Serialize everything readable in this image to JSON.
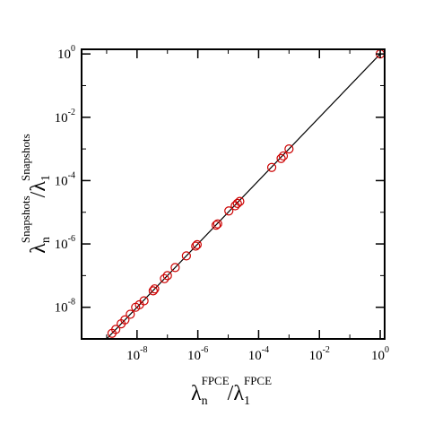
{
  "chart_data": {
    "type": "scatter",
    "title": "",
    "xlabel": {
      "base1": "λ",
      "sub1": "n",
      "sup1": "FPCE",
      "slash": "/",
      "base2": "λ",
      "sub2": "1",
      "sup2": "FPCE"
    },
    "ylabel": {
      "base1": "λ",
      "sub1": "n",
      "sup1": "Snapshots",
      "slash": "/",
      "base2": "λ",
      "sub2": "1",
      "sup2": "Snapshots"
    },
    "x_scale": "log",
    "y_scale": "log",
    "xlim": [
      1.5e-10,
      1.4
    ],
    "ylim": [
      1e-09,
      1.4
    ],
    "x_ticks": [
      {
        "base": "10",
        "exp": "-8",
        "value": 1e-08
      },
      {
        "base": "10",
        "exp": "-6",
        "value": 1e-06
      },
      {
        "base": "10",
        "exp": "-4",
        "value": 0.0001
      },
      {
        "base": "10",
        "exp": "-2",
        "value": 0.01
      },
      {
        "base": "10",
        "exp": "0",
        "value": 1
      }
    ],
    "y_ticks": [
      {
        "base": "10",
        "exp": "-8",
        "value": 1e-08
      },
      {
        "base": "10",
        "exp": "-6",
        "value": 1e-06
      },
      {
        "base": "10",
        "exp": "-4",
        "value": 0.0001
      },
      {
        "base": "10",
        "exp": "-2",
        "value": 0.01
      },
      {
        "base": "10",
        "exp": "0",
        "value": 1
      }
    ],
    "grid": false,
    "legend": "none",
    "reference_line": {
      "from": [
        1e-10,
        1e-10
      ],
      "to": [
        1,
        1
      ],
      "color": "#000000"
    },
    "marker_color": "#cc0000",
    "series": [
      {
        "marker": "open-circle",
        "points": [
          [
            1,
            1
          ],
          [
            0.001,
            0.001
          ],
          [
            0.00065,
            0.0006
          ],
          [
            0.00055,
            0.0005
          ],
          [
            0.00027,
            0.00026
          ],
          [
            2.4e-05,
            2.2e-05
          ],
          [
            2e-05,
            1.9e-05
          ],
          [
            1.7e-05,
            1.6e-05
          ],
          [
            1.05e-05,
            1.1e-05
          ],
          [
            4.5e-06,
            4.3e-06
          ],
          [
            4e-06,
            3.9e-06
          ],
          [
            9.5e-07,
            9.5e-07
          ],
          [
            8.5e-07,
            8.5e-07
          ],
          [
            4.2e-07,
            4.2e-07
          ],
          [
            1.8e-07,
            1.8e-07
          ],
          [
            1e-07,
            1e-07
          ],
          [
            8e-08,
            8e-08
          ],
          [
            3.8e-08,
            3.8e-08
          ],
          [
            3.4e-08,
            3.3e-08
          ],
          [
            1.7e-08,
            1.6e-08
          ],
          [
            1.2e-08,
            1.2e-08
          ],
          [
            9e-09,
            1e-08
          ],
          [
            6e-09,
            6e-09
          ],
          [
            4e-09,
            4e-09
          ],
          [
            3e-09,
            3e-09
          ],
          [
            2e-09,
            2e-09
          ],
          [
            1.5e-09,
            1.5e-09
          ]
        ]
      }
    ]
  }
}
